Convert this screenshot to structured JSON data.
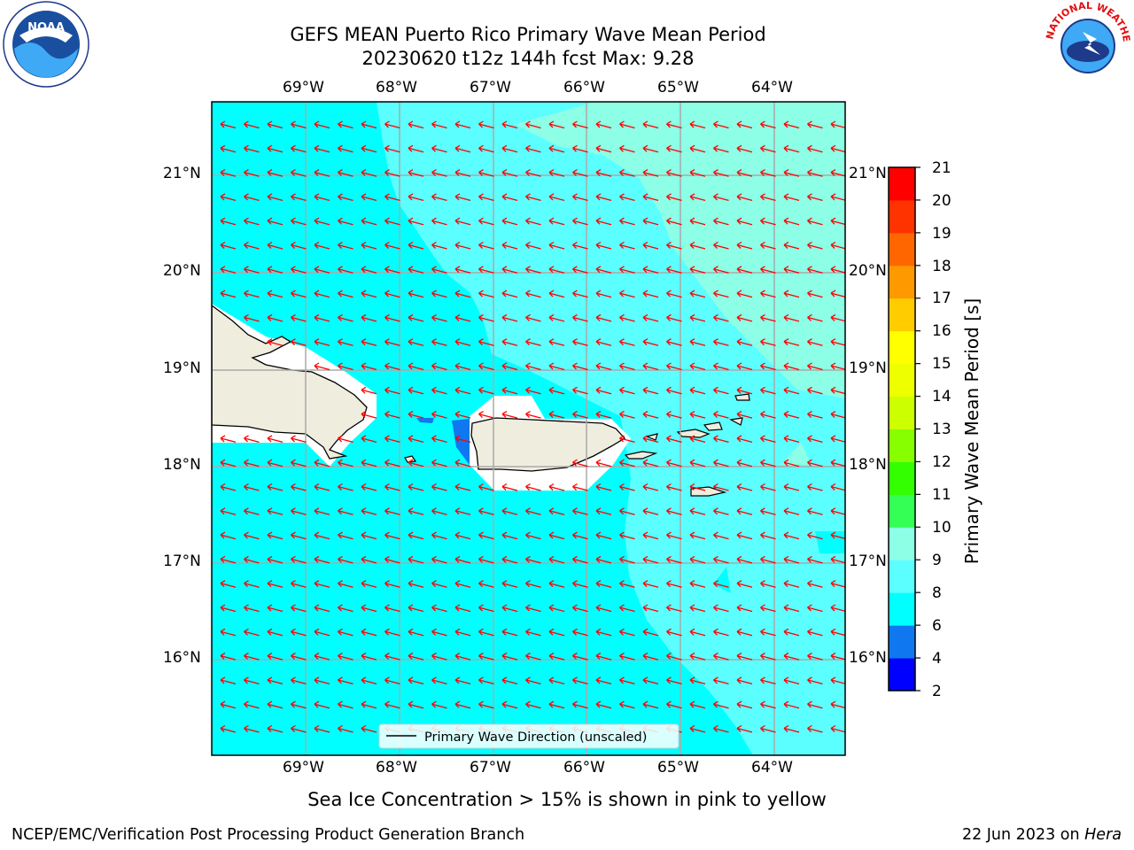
{
  "header": {
    "title_line1": "GEFS MEAN Puerto Rico Primary Wave Mean Period",
    "title_line2": "20230620 t12z 144h fcst   Max: 9.28"
  },
  "map": {
    "lat_labels": [
      "21°N",
      "20°N",
      "19°N",
      "18°N",
      "17°N",
      "16°N"
    ],
    "lon_labels": [
      "69°W",
      "68°W",
      "67°W",
      "66°W",
      "65°W",
      "64°W"
    ],
    "legend_text": "Primary Wave Direction (unscaled)",
    "arrow_color": "#ff0000",
    "land_color": "#efedde"
  },
  "colorbar": {
    "label": "Primary Wave Mean Period [s]",
    "ticks": [
      "21",
      "20",
      "19",
      "18",
      "17",
      "16",
      "15",
      "14",
      "13",
      "12",
      "11",
      "10",
      "9",
      "8",
      "6",
      "4",
      "2"
    ],
    "colors": [
      "#0000ff",
      "#0f78f0",
      "#00ffff",
      "#5cffff",
      "#8cffe6",
      "#33ff55",
      "#33ff00",
      "#88ff00",
      "#ccff00",
      "#eeff00",
      "#ffff00",
      "#ffcc00",
      "#ff9900",
      "#ff6600",
      "#ff3300",
      "#ff0000"
    ]
  },
  "subtitle": "Sea Ice Concentration > 15% is shown in pink to yellow",
  "footer": {
    "left": "NCEP/EMC/Verification Post Processing Product Generation Branch",
    "right_date": "22 Jun 2023 on ",
    "right_host": "Hera"
  },
  "logos": {
    "noaa": "NOAA",
    "nws": "NATIONAL WEATHER SERVICE"
  }
}
